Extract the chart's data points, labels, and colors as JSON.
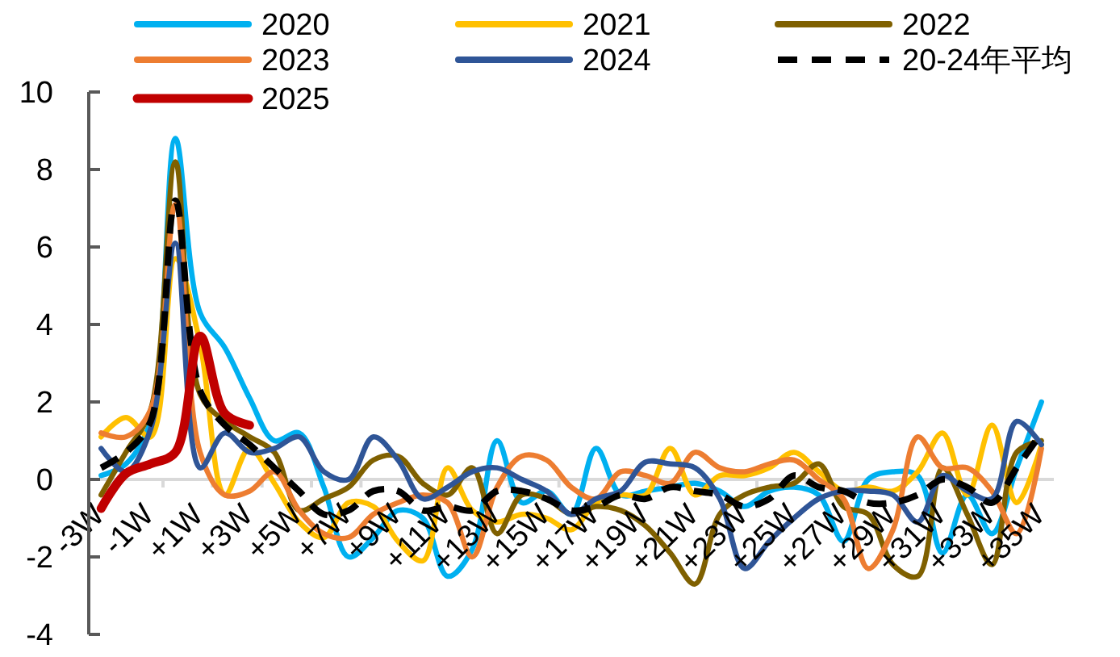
{
  "chart_data": {
    "type": "line",
    "categories": [
      "-3W",
      null,
      "-1W",
      null,
      "+1W",
      null,
      "+3W",
      null,
      "+5W",
      null,
      "+7W",
      null,
      "+9W",
      null,
      "+11W",
      null,
      "+13W",
      null,
      "+15W",
      null,
      "+17W",
      null,
      "+19W",
      null,
      "+21W",
      null,
      "+23W",
      null,
      "+25W",
      null,
      "+27W",
      null,
      "+29W",
      null,
      "+31W",
      null,
      "+33W",
      null,
      "+35W"
    ],
    "series": [
      {
        "name": "2020",
        "color": "#00b0f0",
        "values": [
          0.1,
          0.4,
          1.5,
          8.8,
          4.3,
          3.4,
          2.1,
          1.0,
          1.2,
          -0.2,
          -2.0,
          -1.5,
          -0.8,
          -1.0,
          -2.5,
          -1.8,
          1.0,
          -0.6,
          -0.3,
          -0.9,
          0.8,
          -0.4,
          -0.3,
          -0.2,
          -0.1,
          -0.3,
          -0.7,
          -0.3,
          -0.2,
          -0.4,
          -1.6,
          0.0,
          0.2,
          0.1,
          -1.9,
          -0.4,
          -1.4,
          0.3,
          2.0
        ]
      },
      {
        "name": "2021",
        "color": "#ffc000",
        "values": [
          1.1,
          1.6,
          1.1,
          5.7,
          3.5,
          -0.4,
          0.8,
          -0.1,
          -1.1,
          -1.5,
          -0.6,
          -0.7,
          -1.6,
          -2.1,
          0.3,
          -0.8,
          -1.1,
          -0.9,
          -1.0,
          -1.3,
          -0.6,
          -0.4,
          -0.4,
          0.8,
          -0.4,
          0.1,
          0.1,
          0.3,
          0.7,
          0.2,
          -0.3,
          -0.2,
          -0.3,
          0.2,
          1.2,
          -0.4,
          1.4,
          -0.6,
          0.9
        ]
      },
      {
        "name": "2022",
        "color": "#7f6000",
        "values": [
          -0.4,
          0.7,
          1.8,
          8.2,
          2.2,
          1.5,
          1.1,
          0.7,
          -0.8,
          -0.5,
          -0.2,
          0.5,
          0.6,
          -0.1,
          -0.4,
          0.3,
          -1.4,
          -0.4,
          -0.5,
          -0.9,
          -0.7,
          -0.8,
          -1.2,
          -1.9,
          -2.7,
          -0.9,
          -0.4,
          -0.2,
          -0.1,
          0.4,
          -0.7,
          -0.9,
          -2.2,
          -2.5,
          0.3,
          -0.9,
          -2.2,
          0.7,
          1.0
        ]
      },
      {
        "name": "2023",
        "color": "#ed7d31",
        "values": [
          1.2,
          1.1,
          1.8,
          7.1,
          0.7,
          -0.4,
          -0.3,
          0.2,
          -0.8,
          -1.4,
          -1.5,
          -0.9,
          -0.6,
          -0.4,
          -0.6,
          -2.0,
          -0.2,
          0.6,
          0.5,
          -0.2,
          -0.5,
          0.2,
          0.1,
          -0.1,
          0.7,
          0.3,
          0.2,
          0.4,
          0.5,
          0.0,
          -0.5,
          -2.3,
          -1.3,
          1.1,
          0.3,
          0.3,
          -0.3,
          -1.4,
          0.8
        ]
      },
      {
        "name": "2024",
        "color": "#2f5597",
        "values": [
          0.8,
          0.2,
          1.3,
          6.1,
          0.3,
          1.2,
          0.7,
          0.8,
          1.1,
          0.2,
          0.0,
          1.1,
          0.5,
          -0.5,
          -0.2,
          0.2,
          0.3,
          0.0,
          -0.3,
          -0.9,
          -0.5,
          -0.3,
          0.45,
          0.4,
          0.3,
          -0.5,
          -2.3,
          -1.6,
          -1.0,
          -0.5,
          -0.3,
          -0.3,
          -0.4,
          -1.1,
          0.1,
          -0.3,
          -0.5,
          1.5,
          0.9
        ]
      },
      {
        "name": "20-24年平均",
        "color": "#000000",
        "line_style": "dashed",
        "values": [
          0.3,
          0.7,
          1.5,
          7.2,
          2.3,
          1.4,
          0.9,
          0.3,
          -0.3,
          -0.9,
          -0.8,
          -0.3,
          -0.3,
          -0.8,
          -0.7,
          -0.8,
          -0.3,
          -0.3,
          -0.5,
          -0.8,
          -0.7,
          -0.4,
          -0.5,
          -0.2,
          -0.3,
          -0.4,
          -0.7,
          -0.5,
          0.1,
          -0.2,
          -0.3,
          -0.6,
          -0.6,
          -0.4,
          0.0,
          -0.2,
          -0.6,
          0.3,
          1.2
        ]
      },
      {
        "name": "2025",
        "color": "#c00000",
        "values": [
          -0.75,
          0.15,
          0.4,
          0.7,
          3.7,
          1.7,
          1.4,
          null,
          null,
          null,
          null,
          null,
          null,
          null,
          null,
          null,
          null,
          null,
          null,
          null,
          null,
          null,
          null,
          null,
          null,
          null,
          null,
          null,
          null,
          null,
          null,
          null,
          null,
          null,
          null,
          null,
          null,
          null,
          null
        ]
      }
    ],
    "ylim": [
      -4,
      10
    ],
    "yticks": [
      -4,
      -2,
      0,
      2,
      4,
      6,
      8,
      10
    ],
    "legend": "top"
  }
}
